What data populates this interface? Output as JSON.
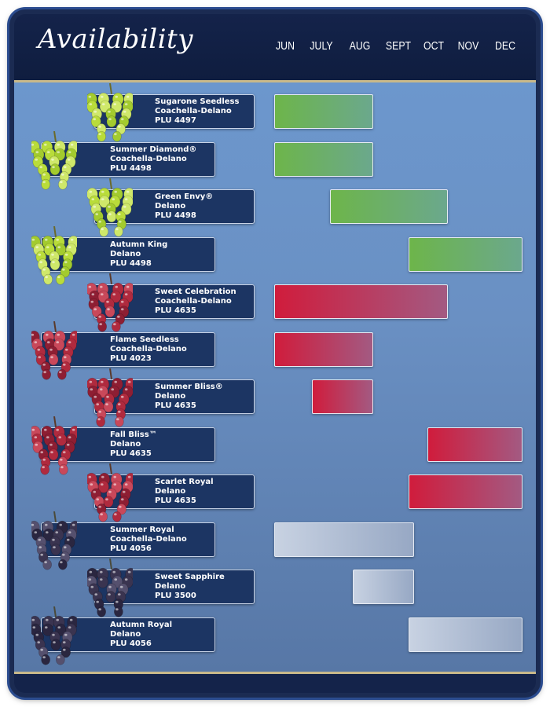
{
  "header": {
    "title": "Availability"
  },
  "colors": {
    "green": "#6db54a",
    "red": "#d01c3c",
    "black": "#b9c4d8",
    "header": "#14234a",
    "panel": "#6a90c3"
  },
  "chart_data": {
    "type": "bar",
    "title": "Availability",
    "months": [
      "JUN",
      "JULY",
      "AUG",
      "SEPT",
      "OCT",
      "NOV",
      "DEC"
    ],
    "rows": [
      {
        "name": "Sugarone Seedless",
        "region": "Coachella-Delano",
        "plu": "PLU 4497",
        "color": "green",
        "start": 0.0,
        "end": 2.6
      },
      {
        "name": "Summer Diamond®",
        "region": "Coachella-Delano",
        "plu": "PLU 4498",
        "color": "green",
        "start": 0.0,
        "end": 2.6
      },
      {
        "name": "Green Envy®",
        "region": "Delano",
        "plu": "PLU 4498",
        "color": "green",
        "start": 1.5,
        "end": 4.6
      },
      {
        "name": "Autumn King",
        "region": "Delano",
        "plu": "PLU 4498",
        "color": "green",
        "start": 3.6,
        "end": 6.6
      },
      {
        "name": "Sweet Celebration",
        "region": "Coachella-Delano",
        "plu": "PLU 4635",
        "color": "red",
        "start": 0.0,
        "end": 4.6
      },
      {
        "name": "Flame Seedless",
        "region": "Coachella-Delano",
        "plu": "PLU 4023",
        "color": "red",
        "start": 0.0,
        "end": 2.6
      },
      {
        "name": "Summer Bliss®",
        "region": "Delano",
        "plu": "PLU 4635",
        "color": "red",
        "start": 1.0,
        "end": 2.6
      },
      {
        "name": "Fall Bliss™",
        "region": "Delano",
        "plu": "PLU 4635",
        "color": "red",
        "start": 4.1,
        "end": 6.6
      },
      {
        "name": "Scarlet Royal",
        "region": "Delano",
        "plu": "PLU 4635",
        "color": "red",
        "start": 3.6,
        "end": 6.6
      },
      {
        "name": "Summer Royal",
        "region": "Coachella-Delano",
        "plu": "PLU 4056",
        "color": "black",
        "start": 0.0,
        "end": 3.7
      },
      {
        "name": "Sweet Sapphire",
        "region": "Delano",
        "plu": "PLU 3500",
        "color": "black",
        "start": 2.1,
        "end": 3.7
      },
      {
        "name": "Autumn Royal",
        "region": "Delano",
        "plu": "PLU 4056",
        "color": "black",
        "start": 3.6,
        "end": 6.6
      }
    ]
  }
}
